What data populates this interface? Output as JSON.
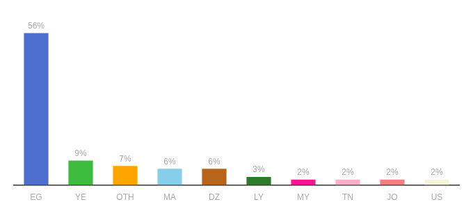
{
  "chart_data": {
    "type": "bar",
    "categories": [
      "EG",
      "YE",
      "OTH",
      "MA",
      "DZ",
      "LY",
      "MY",
      "TN",
      "JO",
      "US"
    ],
    "values": [
      56,
      9,
      7,
      6,
      6,
      3,
      2,
      2,
      2,
      2
    ],
    "value_labels": [
      "56%",
      "9%",
      "7%",
      "6%",
      "6%",
      "3%",
      "2%",
      "2%",
      "2%",
      "2%"
    ],
    "colors": [
      "#4e6fce",
      "#3dbb3d",
      "#ffa500",
      "#87ceeb",
      "#b8651a",
      "#2d7a2d",
      "#ff1493",
      "#ffb0c8",
      "#f08080",
      "#f5f5dc"
    ],
    "ylim": [
      0,
      62
    ],
    "grid": false,
    "data_labels": true,
    "tick_labels": "x"
  }
}
